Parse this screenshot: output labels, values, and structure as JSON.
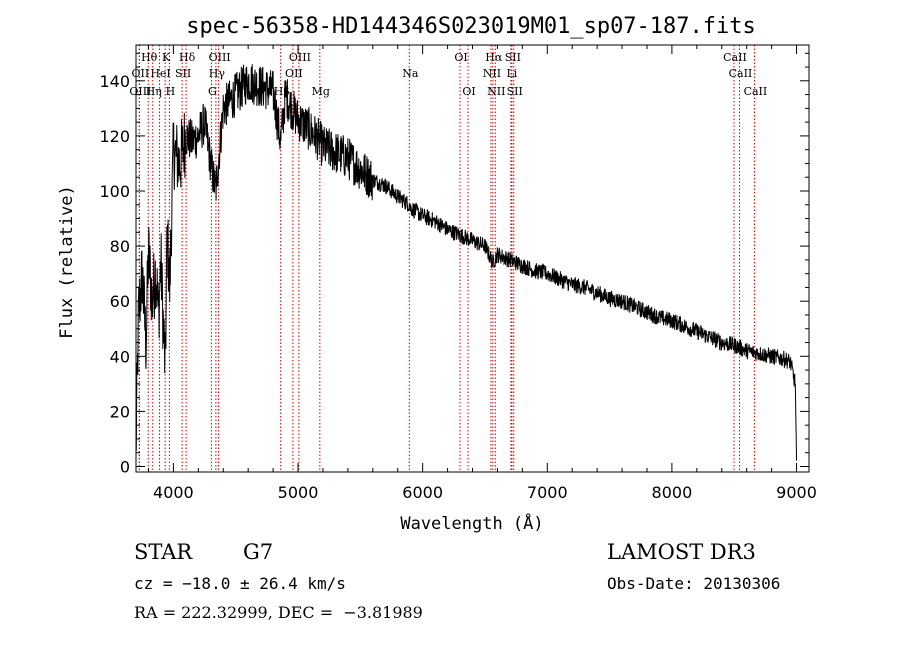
{
  "chart_data": {
    "type": "line",
    "title": "spec-56358-HD144346S023019M01_sp07-187.fits",
    "xlabel": "Wavelength (Å)",
    "ylabel": "Flux (relative)",
    "xlim": [
      3700,
      9100
    ],
    "ylim": [
      -2,
      153
    ],
    "xticks": [
      4000,
      5000,
      6000,
      7000,
      8000,
      9000
    ],
    "yticks": [
      0,
      20,
      40,
      60,
      80,
      100,
      120,
      140
    ],
    "line_color": "#000000",
    "marker_color": "#cc0000",
    "spectrum_anchors": {
      "x": [
        3700,
        3720,
        3750,
        3780,
        3800,
        3830,
        3860,
        3880,
        3900,
        3920,
        3935,
        3950,
        3970,
        4000,
        4050,
        4100,
        4150,
        4200,
        4250,
        4300,
        4340,
        4400,
        4500,
        4600,
        4700,
        4800,
        4861,
        4900,
        4950,
        5000,
        5100,
        5175,
        5200,
        5300,
        5400,
        5500,
        5600,
        5700,
        5800,
        5893,
        5900,
        6000,
        6100,
        6200,
        6300,
        6400,
        6500,
        6563,
        6600,
        6700,
        6800,
        6900,
        7000,
        7100,
        7200,
        7300,
        7400,
        7500,
        7600,
        7700,
        7800,
        7900,
        8000,
        8100,
        8200,
        8300,
        8400,
        8500,
        8600,
        8700,
        8800,
        8900,
        8950,
        8990,
        9000
      ],
      "y": [
        5,
        55,
        70,
        45,
        78,
        60,
        72,
        55,
        75,
        50,
        35,
        85,
        65,
        115,
        110,
        120,
        118,
        120,
        125,
        110,
        100,
        130,
        135,
        140,
        138,
        136,
        118,
        135,
        130,
        126,
        122,
        118,
        116,
        114,
        112,
        108,
        104,
        102,
        98,
        95,
        94,
        91,
        89,
        86,
        84,
        82,
        80,
        74,
        77,
        75,
        73,
        71,
        70,
        68,
        66,
        65,
        63,
        61,
        60,
        58,
        56,
        54,
        53,
        51,
        49,
        47,
        45,
        44,
        42,
        41,
        40,
        39,
        38,
        30,
        1
      ]
    },
    "line_markers": [
      {
        "label": "Hθ",
        "x": 3798,
        "row": 1
      },
      {
        "label": "K",
        "x": 3934,
        "row": 1
      },
      {
        "label": "Hδ",
        "x": 4102,
        "row": 1
      },
      {
        "label": "OIII",
        "x": 4363,
        "row": 1
      },
      {
        "label": "OIII",
        "x": 5007,
        "row": 1
      },
      {
        "label": "OI",
        "x": 6300,
        "row": 1
      },
      {
        "label": "Hα",
        "x": 6563,
        "row": 1
      },
      {
        "label": "SII",
        "x": 6716,
        "row": 1
      },
      {
        "label": "CaII",
        "x": 8498,
        "row": 1
      },
      {
        "label": "OII",
        "x": 3727,
        "row": 2
      },
      {
        "label": "HeI",
        "x": 3889,
        "row": 2
      },
      {
        "label": "SII",
        "x": 4070,
        "row": 2
      },
      {
        "label": "Hγ",
        "x": 4341,
        "row": 2
      },
      {
        "label": "OII",
        "x": 4959,
        "row": 2
      },
      {
        "label": "Na",
        "x": 5893,
        "row": 2
      },
      {
        "label": "NII",
        "x": 6548,
        "row": 2
      },
      {
        "label": "Li",
        "x": 6708,
        "row": 2
      },
      {
        "label": "CaII",
        "x": 8542,
        "row": 2
      },
      {
        "label": "OIII",
        "x": 3727,
        "row": 3
      },
      {
        "label": "Hη",
        "x": 3835,
        "row": 3
      },
      {
        "label": "H",
        "x": 3968,
        "row": 3
      },
      {
        "label": "G",
        "x": 4305,
        "row": 3
      },
      {
        "label": "Hβ",
        "x": 4861,
        "row": 3
      },
      {
        "label": "Mg",
        "x": 5175,
        "row": 3
      },
      {
        "label": "OI",
        "x": 6364,
        "row": 3
      },
      {
        "label": "NII",
        "x": 6583,
        "row": 3
      },
      {
        "label": "SII",
        "x": 6731,
        "row": 3
      },
      {
        "label": "CaII",
        "x": 8662,
        "row": 3
      }
    ]
  },
  "info": {
    "object_type": "STAR",
    "subclass": "G7",
    "survey": "LAMOST DR3",
    "redshift": "cz = −18.0 ± 26.4 km/s",
    "obs_date": "Obs-Date: 20130306",
    "coords": "RA = 222.32999, DEC =  −3.81989"
  }
}
